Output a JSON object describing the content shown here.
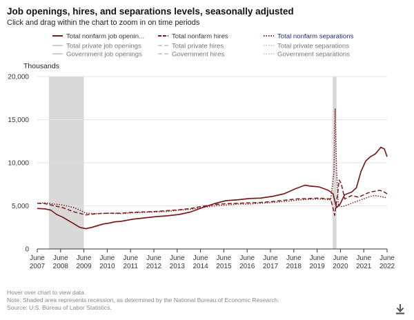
{
  "title": "Job openings, hires, and separations levels, seasonally adjusted",
  "subtitle": "Click and drag within the chart to zoom in on time periods",
  "colors": {
    "total": "#7a1b1b",
    "private": "#999999",
    "government": "#999999",
    "separations_label": "#1a2a6c",
    "recession": "#d9d9d9"
  },
  "legend": [
    {
      "label": "Total nonfarm job openin...",
      "style": "solid",
      "group": "total"
    },
    {
      "label": "Total nonfarm hires",
      "style": "dashed",
      "group": "total"
    },
    {
      "label": "Total nonfarm separations",
      "style": "dotted",
      "group": "total"
    },
    {
      "label": "Total private job openings",
      "style": "solid",
      "group": "private"
    },
    {
      "label": "Total private hires",
      "style": "dashed",
      "group": "private"
    },
    {
      "label": "Total private separations",
      "style": "dotted",
      "group": "private"
    },
    {
      "label": "Government job openings",
      "style": "solid",
      "group": "government"
    },
    {
      "label": "Government hires",
      "style": "dashed",
      "group": "government"
    },
    {
      "label": "Government separations",
      "style": "dotted",
      "group": "government"
    }
  ],
  "footnotes": {
    "hover": "Hover over chart to view data.",
    "note": "Note: Shaded area represents recession, as determined by the National Bureau of Economic Research.",
    "source": "Source: U.S. Bureau of Labor Statistics."
  },
  "download_icon": "download-icon",
  "chart_data": {
    "type": "line",
    "title": "Job openings, hires, and separations levels, seasonally adjusted",
    "ylabel": "Thousands",
    "xlabel": "",
    "ylim": [
      0,
      20000
    ],
    "xlim": [
      2007.417,
      2022.417
    ],
    "y_ticks": [
      0,
      5000,
      10000,
      15000,
      20000
    ],
    "y_tick_labels": [
      "0",
      "5,000",
      "10,000",
      "15,000",
      "20,000"
    ],
    "x_ticks": [
      {
        "x": 2007.417,
        "line1": "June",
        "line2": "2007"
      },
      {
        "x": 2008.417,
        "line1": "June",
        "line2": "2008"
      },
      {
        "x": 2009.417,
        "line1": "June",
        "line2": "2009"
      },
      {
        "x": 2010.417,
        "line1": "June",
        "line2": "2010"
      },
      {
        "x": 2011.417,
        "line1": "June",
        "line2": "2011"
      },
      {
        "x": 2012.417,
        "line1": "June",
        "line2": "2012"
      },
      {
        "x": 2013.417,
        "line1": "June",
        "line2": "2013"
      },
      {
        "x": 2014.417,
        "line1": "June",
        "line2": "2014"
      },
      {
        "x": 2015.417,
        "line1": "June",
        "line2": "2015"
      },
      {
        "x": 2016.417,
        "line1": "June",
        "line2": "2016"
      },
      {
        "x": 2017.417,
        "line1": "June",
        "line2": "2017"
      },
      {
        "x": 2018.417,
        "line1": "June",
        "line2": "2018"
      },
      {
        "x": 2019.417,
        "line1": "June",
        "line2": "2019"
      },
      {
        "x": 2020.417,
        "line1": "June",
        "line2": "2020"
      },
      {
        "x": 2021.417,
        "line1": "June",
        "line2": "2021"
      },
      {
        "x": 2022.417,
        "line1": "June",
        "line2": "2022"
      }
    ],
    "recessions": [
      {
        "start": 2007.917,
        "end": 2009.417
      },
      {
        "start": 2020.083,
        "end": 2020.25
      }
    ],
    "series": [
      {
        "name": "Total nonfarm job openings",
        "style": "solid",
        "points": [
          [
            2007.417,
            4700
          ],
          [
            2007.75,
            4650
          ],
          [
            2008.0,
            4500
          ],
          [
            2008.25,
            4000
          ],
          [
            2008.5,
            3700
          ],
          [
            2008.75,
            3300
          ],
          [
            2009.0,
            2900
          ],
          [
            2009.25,
            2500
          ],
          [
            2009.5,
            2350
          ],
          [
            2009.75,
            2500
          ],
          [
            2010.0,
            2700
          ],
          [
            2010.25,
            2900
          ],
          [
            2010.5,
            3000
          ],
          [
            2010.75,
            3150
          ],
          [
            2011.0,
            3200
          ],
          [
            2011.5,
            3450
          ],
          [
            2012.0,
            3600
          ],
          [
            2012.5,
            3750
          ],
          [
            2013.0,
            3850
          ],
          [
            2013.5,
            4000
          ],
          [
            2014.0,
            4300
          ],
          [
            2014.5,
            4800
          ],
          [
            2015.0,
            5250
          ],
          [
            2015.5,
            5600
          ],
          [
            2016.0,
            5700
          ],
          [
            2016.5,
            5850
          ],
          [
            2017.0,
            5900
          ],
          [
            2017.5,
            6100
          ],
          [
            2018.0,
            6400
          ],
          [
            2018.5,
            7000
          ],
          [
            2018.9,
            7400
          ],
          [
            2019.1,
            7300
          ],
          [
            2019.5,
            7200
          ],
          [
            2019.9,
            6800
          ],
          [
            2020.1,
            6400
          ],
          [
            2020.25,
            4800
          ],
          [
            2020.4,
            5200
          ],
          [
            2020.6,
            6300
          ],
          [
            2020.9,
            6600
          ],
          [
            2021.1,
            7100
          ],
          [
            2021.3,
            9000
          ],
          [
            2021.5,
            10200
          ],
          [
            2021.7,
            10700
          ],
          [
            2021.9,
            11000
          ],
          [
            2022.0,
            11300
          ],
          [
            2022.15,
            11800
          ],
          [
            2022.3,
            11600
          ],
          [
            2022.417,
            10700
          ]
        ]
      },
      {
        "name": "Total nonfarm hires",
        "style": "dashed",
        "points": [
          [
            2007.417,
            5300
          ],
          [
            2007.75,
            5250
          ],
          [
            2008.0,
            5100
          ],
          [
            2008.5,
            4800
          ],
          [
            2009.0,
            4300
          ],
          [
            2009.5,
            3950
          ],
          [
            2010.0,
            4100
          ],
          [
            2010.5,
            4150
          ],
          [
            2011.0,
            4150
          ],
          [
            2011.5,
            4250
          ],
          [
            2012.0,
            4300
          ],
          [
            2012.5,
            4350
          ],
          [
            2013.0,
            4450
          ],
          [
            2013.5,
            4550
          ],
          [
            2014.0,
            4700
          ],
          [
            2014.5,
            4950
          ],
          [
            2015.0,
            5150
          ],
          [
            2015.5,
            5250
          ],
          [
            2016.0,
            5300
          ],
          [
            2016.5,
            5350
          ],
          [
            2017.0,
            5400
          ],
          [
            2017.5,
            5500
          ],
          [
            2018.0,
            5650
          ],
          [
            2018.5,
            5800
          ],
          [
            2019.0,
            5850
          ],
          [
            2019.5,
            5900
          ],
          [
            2020.0,
            5800
          ],
          [
            2020.17,
            3900
          ],
          [
            2020.3,
            6500
          ],
          [
            2020.36,
            8000
          ],
          [
            2020.45,
            7600
          ],
          [
            2020.6,
            5800
          ],
          [
            2020.9,
            6200
          ],
          [
            2021.2,
            6000
          ],
          [
            2021.5,
            6400
          ],
          [
            2021.7,
            6600
          ],
          [
            2021.9,
            6700
          ],
          [
            2022.1,
            6800
          ],
          [
            2022.3,
            6600
          ],
          [
            2022.417,
            6400
          ]
        ]
      },
      {
        "name": "Total nonfarm separations",
        "style": "dotted",
        "points": [
          [
            2007.417,
            5300
          ],
          [
            2007.75,
            5350
          ],
          [
            2008.0,
            5250
          ],
          [
            2008.5,
            5100
          ],
          [
            2009.0,
            4800
          ],
          [
            2009.25,
            4500
          ],
          [
            2009.5,
            4150
          ],
          [
            2010.0,
            4100
          ],
          [
            2010.5,
            4150
          ],
          [
            2011.0,
            4100
          ],
          [
            2011.5,
            4200
          ],
          [
            2012.0,
            4250
          ],
          [
            2012.5,
            4300
          ],
          [
            2013.0,
            4350
          ],
          [
            2013.5,
            4500
          ],
          [
            2014.0,
            4600
          ],
          [
            2014.5,
            4800
          ],
          [
            2015.0,
            5000
          ],
          [
            2015.5,
            5100
          ],
          [
            2016.0,
            5200
          ],
          [
            2016.5,
            5200
          ],
          [
            2017.0,
            5300
          ],
          [
            2017.5,
            5400
          ],
          [
            2018.0,
            5500
          ],
          [
            2018.5,
            5650
          ],
          [
            2019.0,
            5750
          ],
          [
            2019.5,
            5800
          ],
          [
            2020.0,
            5700
          ],
          [
            2020.14,
            9000
          ],
          [
            2020.19,
            16300
          ],
          [
            2020.25,
            9000
          ],
          [
            2020.33,
            5000
          ],
          [
            2020.5,
            4900
          ],
          [
            2020.8,
            5200
          ],
          [
            2021.0,
            5400
          ],
          [
            2021.3,
            5700
          ],
          [
            2021.5,
            5900
          ],
          [
            2021.7,
            6100
          ],
          [
            2021.9,
            6200
          ],
          [
            2022.1,
            6100
          ],
          [
            2022.3,
            6000
          ],
          [
            2022.417,
            5950
          ]
        ]
      }
    ]
  }
}
